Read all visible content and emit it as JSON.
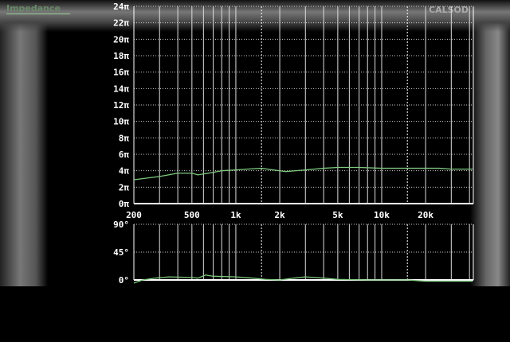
{
  "window": {
    "title": "Impedance",
    "brand": "CALSOD"
  },
  "chart_data": [
    {
      "type": "line",
      "ylabel": "",
      "xscale": "log",
      "xlim": [
        200,
        42500
      ],
      "ylim": [
        0,
        24
      ],
      "yticks": [
        0,
        2,
        4,
        6,
        8,
        10,
        12,
        14,
        16,
        18,
        20,
        22,
        24
      ],
      "ytick_suffix": "π",
      "xticks": [
        200,
        500,
        1000,
        2000,
        5000,
        10000,
        20000
      ],
      "xtick_labels": [
        "200",
        "500",
        "1k",
        "2k",
        "5k",
        "10k",
        "20k"
      ],
      "grid": true,
      "line_color": "#7fc97f",
      "x": [
        200,
        300,
        400,
        500,
        550,
        700,
        800,
        1000,
        1200,
        1500,
        1800,
        2200,
        3000,
        4000,
        5000,
        7000,
        10000,
        25000,
        30000,
        42000
      ],
      "y": [
        2.9,
        3.3,
        3.7,
        3.7,
        3.5,
        3.8,
        4.0,
        4.1,
        4.2,
        4.3,
        4.1,
        3.9,
        4.1,
        4.3,
        4.4,
        4.4,
        4.3,
        4.3,
        4.2,
        4.2
      ]
    },
    {
      "type": "line",
      "xscale": "log",
      "xlim": [
        200,
        42500
      ],
      "ylim": [
        0,
        90
      ],
      "yticks": [
        0,
        45,
        90
      ],
      "ytick_suffix": "°",
      "grid": true,
      "line_color": "#7fc97f",
      "x": [
        200,
        230,
        280,
        350,
        500,
        550,
        620,
        700,
        1000,
        1300,
        1600,
        2000,
        2500,
        3000,
        4000,
        5000,
        8000,
        15000,
        20000,
        42000
      ],
      "y": [
        -5,
        0,
        3,
        5,
        4,
        3,
        8,
        6,
        5,
        3,
        1,
        0,
        3,
        5,
        3,
        1,
        0,
        0,
        -2,
        -2
      ]
    }
  ]
}
